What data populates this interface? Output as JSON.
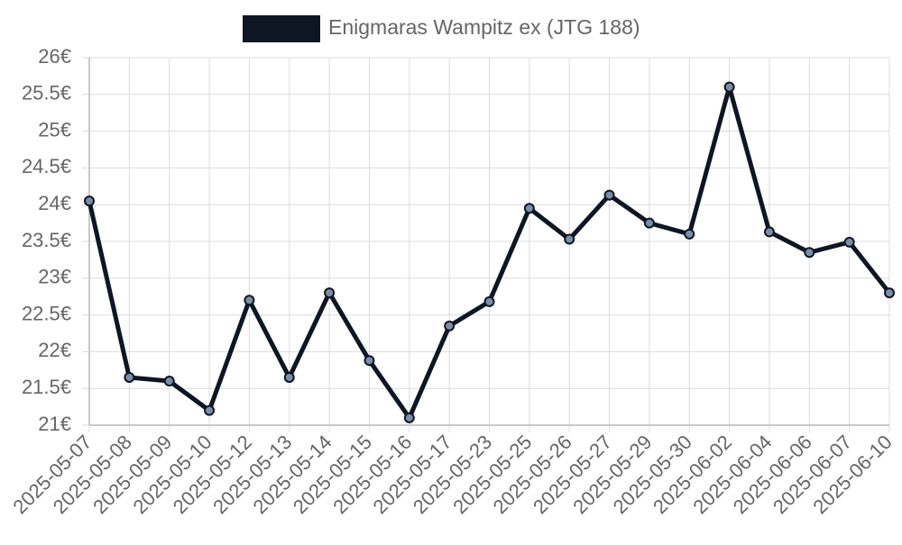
{
  "chart_data": {
    "type": "line",
    "title": "",
    "xlabel": "",
    "ylabel": "",
    "legend": {
      "label": "Enigmaras Wampitz ex (JTG 188)",
      "placement": "top-center"
    },
    "categories": [
      "2025-05-07",
      "2025-05-08",
      "2025-05-09",
      "2025-05-10",
      "2025-05-12",
      "2025-05-13",
      "2025-05-14",
      "2025-05-15",
      "2025-05-16",
      "2025-05-17",
      "2025-05-23",
      "2025-05-25",
      "2025-05-26",
      "2025-05-27",
      "2025-05-29",
      "2025-05-30",
      "2025-06-02",
      "2025-06-04",
      "2025-06-06",
      "2025-06-07",
      "2025-06-10"
    ],
    "series": [
      {
        "name": "Enigmaras Wampitz ex (JTG 188)",
        "values": [
          24.05,
          21.65,
          21.6,
          21.2,
          22.7,
          21.65,
          22.8,
          21.88,
          21.1,
          22.35,
          22.68,
          23.95,
          23.53,
          24.13,
          23.75,
          23.6,
          25.6,
          23.63,
          23.35,
          23.49,
          22.8
        ]
      }
    ],
    "ylim": [
      21,
      26
    ],
    "yticks": [
      21,
      21.5,
      22,
      22.5,
      23,
      23.5,
      24,
      24.5,
      25,
      25.5,
      26
    ],
    "ytick_labels": [
      "21€",
      "21.5€",
      "22€",
      "22.5€",
      "23€",
      "23.5€",
      "24€",
      "24.5€",
      "25€",
      "25.5€",
      "26€"
    ],
    "grid": true,
    "colors": {
      "line": "#0f1623",
      "marker_fill": "#7a8ea8",
      "marker_stroke": "#0f1623",
      "grid": "#dcdcdc",
      "axis": "#b5b5b5",
      "tick_text": "#666666",
      "legend_swatch": "#0f1623"
    }
  }
}
